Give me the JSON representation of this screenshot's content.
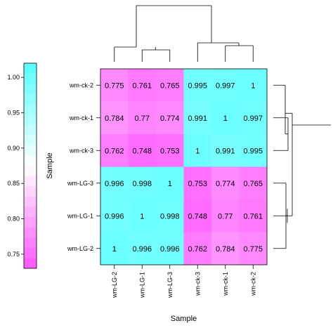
{
  "chart_data": {
    "type": "heatmap",
    "title": "",
    "xlabel": "Sample",
    "ylabel": "",
    "x_categories": [
      "wm-LG-2",
      "wm-LG-1",
      "wm-LG-3",
      "wm-ck-3",
      "wm-ck-1",
      "wm-ck-2"
    ],
    "y_categories": [
      "wm-ck-2",
      "wm-ck-1",
      "wm-ck-3",
      "wm-LG-3",
      "wm-LG-1",
      "wm-LG-2"
    ],
    "values": [
      [
        "0.775",
        "0.761",
        "0.765",
        "0.995",
        "0.997",
        "1"
      ],
      [
        "0.784",
        "0.77",
        "0.774",
        "0.991",
        "1",
        "0.997"
      ],
      [
        "0.762",
        "0.748",
        "0.753",
        "1",
        "0.991",
        "0.995"
      ],
      [
        "0.996",
        "0.998",
        "1",
        "0.753",
        "0.774",
        "0.765"
      ],
      [
        "0.996",
        "1",
        "0.998",
        "0.748",
        "0.77",
        "0.761"
      ],
      [
        "1",
        "0.996",
        "0.996",
        "0.762",
        "0.784",
        "0.775"
      ]
    ],
    "color_scale": {
      "min": 0.73,
      "max": 1.02,
      "low_color": "#ff55ff",
      "mid_color": "#ffffff",
      "high_color": "#55ffff"
    },
    "colorbar": {
      "label": "Sample",
      "ticks": [
        "0.75",
        "0.80",
        "0.85",
        "0.90",
        "0.95",
        "1.00"
      ]
    },
    "dendrograms": {
      "top": true,
      "right": true
    }
  }
}
